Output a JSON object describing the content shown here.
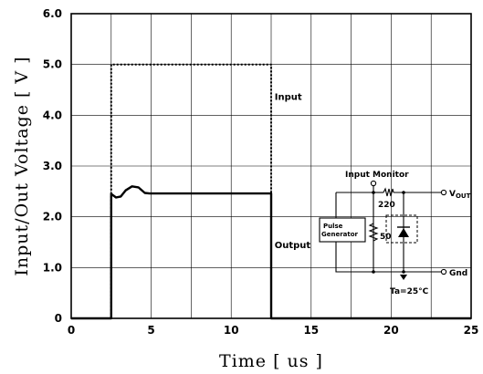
{
  "chart_data": {
    "type": "line",
    "xlabel": "Time  [ us ]",
    "ylabel": "Input/Out  Voltage  [ V ]",
    "xlim": [
      0,
      25
    ],
    "ylim": [
      0,
      6.0
    ],
    "x_ticks": [
      "0",
      "5",
      "10",
      "15",
      "20",
      "25"
    ],
    "y_ticks": [
      "0",
      "1.0",
      "2.0",
      "3.0",
      "4.0",
      "5.0",
      "6.0"
    ],
    "grid": true,
    "series": [
      {
        "name": "Input",
        "style": "dotted",
        "x": [
          0,
          2.5,
          2.5,
          12.5,
          12.5,
          25
        ],
        "y": [
          0,
          0,
          5.0,
          5.0,
          0,
          0
        ]
      },
      {
        "name": "Output",
        "style": "solid",
        "x": [
          0,
          2.5,
          2.5,
          2.8,
          3.1,
          3.4,
          3.8,
          4.2,
          4.6,
          4.9,
          5.2,
          12.5,
          12.5,
          25
        ],
        "y": [
          0,
          0,
          2.45,
          2.38,
          2.4,
          2.52,
          2.6,
          2.58,
          2.47,
          2.46,
          2.46,
          2.46,
          0,
          0
        ]
      }
    ],
    "inset_circuit": {
      "labels": {
        "input_monitor": "Input  Monitor",
        "vout_main": "V",
        "vout_sub": "OUT",
        "resistor_top": "220",
        "resistor_shunt": "50",
        "generator_line1": "Pulse",
        "generator_line2": "Generator",
        "gnd": "Gnd",
        "temperature": "Ta=25°C"
      }
    }
  },
  "colors": {
    "line": "#000000",
    "grid": "#000000",
    "background": "#ffffff"
  }
}
